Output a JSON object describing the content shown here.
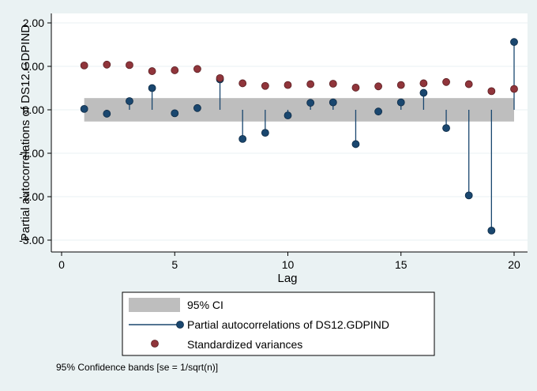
{
  "chart_data": {
    "type": "scatter",
    "xlabel": "Lag",
    "ylabel": "Partial autocorrelations of DS12.GDPIND",
    "xlim": [
      0,
      20
    ],
    "ylim": [
      -3,
      2
    ],
    "xticks": [
      0,
      5,
      10,
      15,
      20
    ],
    "yticks": [
      2,
      1,
      0,
      -1,
      -2,
      -3
    ],
    "ytick_labels": [
      "2.00",
      "1.00",
      "0.00",
      "-1.00",
      "-2.00",
      "-3.00"
    ],
    "grid": true,
    "ci_band": {
      "name": "95% CI",
      "lags": [
        1,
        20
      ],
      "upper": 0.27,
      "lower": -0.27,
      "color": "#bebebe"
    },
    "series": [
      {
        "name": "Partial autocorrelations of DS12.GDPIND",
        "kind": "spike",
        "color": "#1a476f",
        "x": [
          1,
          2,
          3,
          4,
          5,
          6,
          7,
          8,
          9,
          10,
          11,
          12,
          13,
          14,
          15,
          16,
          17,
          18,
          19,
          20
        ],
        "values": [
          0.02,
          -0.09,
          0.2,
          0.5,
          -0.08,
          0.04,
          0.7,
          -0.67,
          -0.53,
          -0.13,
          0.16,
          0.17,
          -0.79,
          -0.04,
          0.17,
          0.39,
          -0.42,
          -1.97,
          -2.78,
          1.56
        ]
      },
      {
        "name": "Standardized variances",
        "kind": "point",
        "color": "#90353b",
        "x": [
          1,
          2,
          3,
          4,
          5,
          6,
          7,
          8,
          9,
          10,
          11,
          12,
          13,
          14,
          15,
          16,
          17,
          18,
          19,
          20
        ],
        "values": [
          1.02,
          1.04,
          1.03,
          0.89,
          0.91,
          0.94,
          0.73,
          0.61,
          0.55,
          0.57,
          0.59,
          0.6,
          0.51,
          0.54,
          0.57,
          0.61,
          0.64,
          0.59,
          0.43,
          0.48
        ]
      }
    ],
    "legend": {
      "position": "bottom",
      "entries": [
        "95% CI",
        "Partial autocorrelations of DS12.GDPIND",
        "Standardized variances"
      ]
    },
    "note": "95% Confidence bands [se = 1/sqrt(n)]"
  }
}
